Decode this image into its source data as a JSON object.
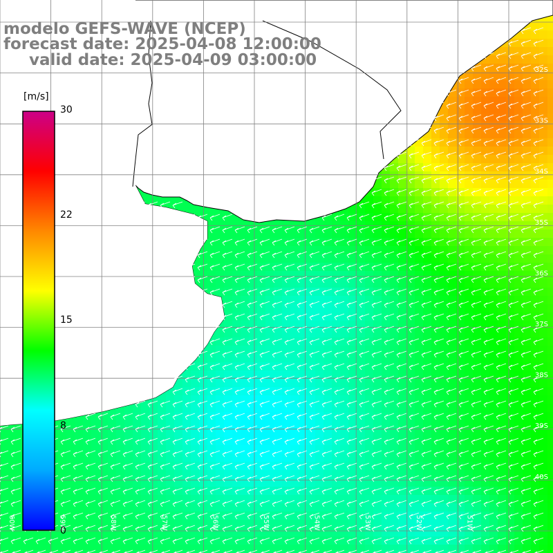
{
  "title": {
    "line1": "modelo GEFS-WAVE (NCEP)",
    "line2": "forecast date: 2025-04-08 12:00:00",
    "line3": "valid date: 2025-04-09 03:00:00"
  },
  "colorbar": {
    "unit": "[m/s]",
    "ticks": [
      "30",
      "22",
      "15",
      "8",
      "0"
    ],
    "range": [
      0,
      30
    ],
    "stops": [
      "#0000ff",
      "#00aaff",
      "#00ffff",
      "#00ff00",
      "#ffff00",
      "#ff8800",
      "#ff0000",
      "#cc0088"
    ]
  },
  "map": {
    "lat_labels": [
      "32S",
      "33S",
      "34S",
      "35S",
      "36S",
      "37S",
      "38S",
      "39S",
      "40S"
    ],
    "lon_labels": [
      "60W",
      "59W",
      "58W",
      "57W",
      "56W",
      "55W",
      "54W",
      "53W",
      "52W",
      "51W"
    ],
    "land_color": "#ffffff",
    "grid_color": "#808080",
    "arrow_color": "#ffffff",
    "wind_direction": "from east-northeast"
  }
}
